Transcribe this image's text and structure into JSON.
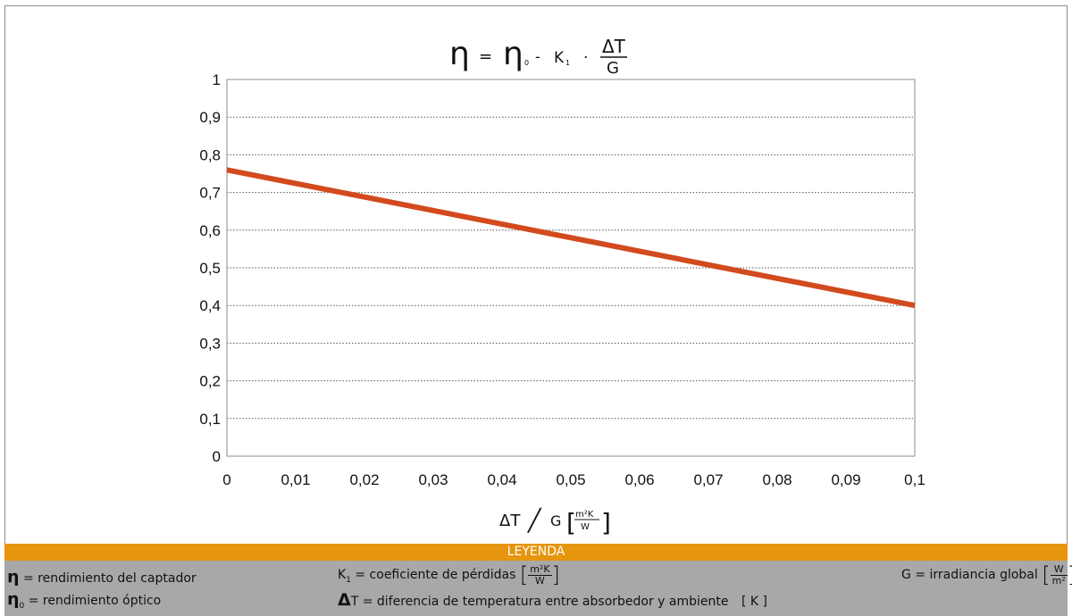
{
  "chart_data": {
    "type": "line",
    "x": [
      0,
      0.1
    ],
    "series": [
      {
        "values": [
          0.76,
          0.4
        ],
        "color": "#d24a1e"
      }
    ],
    "xlim": [
      0,
      0.1
    ],
    "ylim": [
      0,
      1
    ],
    "x_ticks": [
      "0",
      "0,01",
      "0,02",
      "0,03",
      "0,04",
      "0,05",
      "0,06",
      "0,07",
      "0,08",
      "0,09",
      "0,1"
    ],
    "y_ticks": [
      "0",
      "0,1",
      "0,2",
      "0,3",
      "0,4",
      "0,5",
      "0,6",
      "0,7",
      "0,8",
      "0,9",
      "1"
    ],
    "grid": "horizontal-dotted",
    "formula": {
      "eta": "η",
      "equals": "=",
      "eta0": "η",
      "eta0_sub": "0",
      "minus": "-",
      "k1": "K",
      "k1_sub": "1",
      "dot": "·",
      "numerator": "ΔT",
      "denominator": "G"
    },
    "xlabel": {
      "text": "ΔT",
      "slash": "╱",
      "g": "G",
      "unit_num": "m²K",
      "unit_den": "W"
    }
  },
  "legend": {
    "header": "LEYENDA",
    "eta_sym": "η",
    "eta_text": "= rendimiento del captador",
    "eta0_sym": "η",
    "eta0_sub": "0",
    "eta0_text": "= rendimiento óptico",
    "k1_sym": "K",
    "k1_sub": "1",
    "k1_text": "= coeficiente de pérdidas",
    "k1_unit_num": "m²K",
    "k1_unit_den": "W",
    "dt_sym": "Δ",
    "dt_text": "T = diferencia de temperatura entre absorbedor y ambiente",
    "dt_unit": "[ K ]",
    "g_sym": "G",
    "g_text": "= irradiancia global",
    "g_unit_num": "W",
    "g_unit_den": "m²"
  }
}
